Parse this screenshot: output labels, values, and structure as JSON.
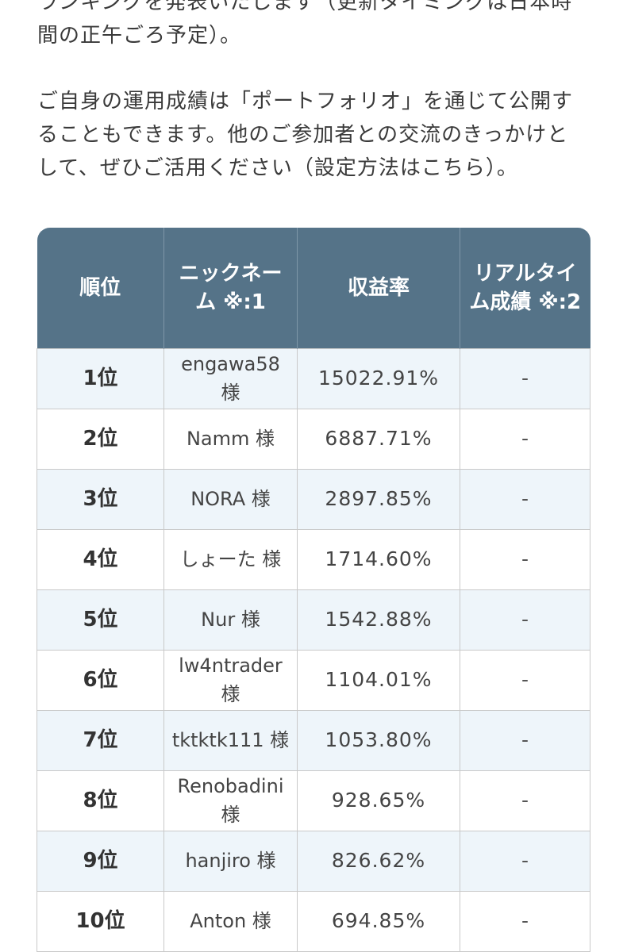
{
  "intro": {
    "paragraph1": [
      "ランキングを発表いたします（更新タイミングは日本時",
      "間の正午ごろ予定）。"
    ],
    "paragraph2": [
      "ご自身の運用成績は「ポートフォリオ」を通じて公開す",
      "ることもできます。他のご参加者との交流のきっかけと",
      "して、ぜひご活用ください（設定方法はこちら）。"
    ]
  },
  "table": {
    "headers": {
      "rank": "順位",
      "nickname": "ニックネーム ※:1",
      "return_rate": "収益率",
      "realtime": "リアルタイム成績 ※:2"
    },
    "rows": [
      {
        "rank": "1位",
        "nickname": "engawa58 様",
        "return_rate": "15022.91%",
        "realtime": "-"
      },
      {
        "rank": "2位",
        "nickname": "Namm 様",
        "return_rate": "6887.71%",
        "realtime": "-"
      },
      {
        "rank": "3位",
        "nickname": "NORA 様",
        "return_rate": "2897.85%",
        "realtime": "-"
      },
      {
        "rank": "4位",
        "nickname": "しょーた 様",
        "return_rate": "1714.60%",
        "realtime": "-"
      },
      {
        "rank": "5位",
        "nickname": "Nur 様",
        "return_rate": "1542.88%",
        "realtime": "-"
      },
      {
        "rank": "6位",
        "nickname": "lw4ntrader 様",
        "return_rate": "1104.01%",
        "realtime": "-"
      },
      {
        "rank": "7位",
        "nickname": "tktktk111 様",
        "return_rate": "1053.80%",
        "realtime": "-"
      },
      {
        "rank": "8位",
        "nickname": "Renobadini 様",
        "return_rate": "928.65%",
        "realtime": "-"
      },
      {
        "rank": "9位",
        "nickname": "hanjiro 様",
        "return_rate": "826.62%",
        "realtime": "-"
      },
      {
        "rank": "10位",
        "nickname": "Anton 様",
        "return_rate": "694.85%",
        "realtime": "-"
      }
    ]
  }
}
